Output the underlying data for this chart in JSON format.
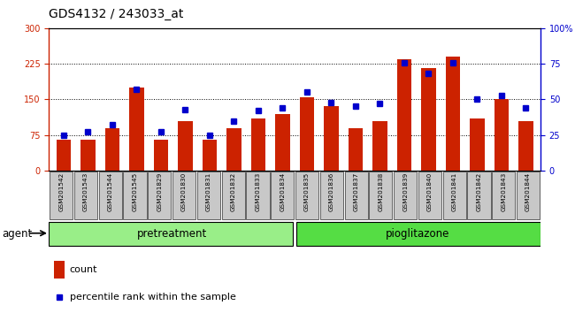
{
  "title": "GDS4132 / 243033_at",
  "samples": [
    "GSM201542",
    "GSM201543",
    "GSM201544",
    "GSM201545",
    "GSM201829",
    "GSM201830",
    "GSM201831",
    "GSM201832",
    "GSM201833",
    "GSM201834",
    "GSM201835",
    "GSM201836",
    "GSM201837",
    "GSM201838",
    "GSM201839",
    "GSM201840",
    "GSM201841",
    "GSM201842",
    "GSM201843",
    "GSM201844"
  ],
  "counts": [
    65,
    65,
    90,
    175,
    65,
    105,
    65,
    90,
    110,
    120,
    155,
    135,
    90,
    105,
    235,
    215,
    240,
    110,
    150,
    105
  ],
  "percentiles": [
    25,
    27,
    32,
    57,
    27,
    43,
    25,
    35,
    42,
    44,
    55,
    48,
    45,
    47,
    76,
    68,
    76,
    50,
    53,
    44
  ],
  "pretreatment_count": 10,
  "pioglitazone_count": 10,
  "left_ylim": [
    0,
    300
  ],
  "right_ylim": [
    0,
    100
  ],
  "left_yticks": [
    0,
    75,
    150,
    225,
    300
  ],
  "right_yticks": [
    0,
    25,
    50,
    75,
    100
  ],
  "bar_color": "#cc2200",
  "scatter_color": "#0000cc",
  "pretreatment_color": "#99ee88",
  "pioglitazone_color": "#55dd44",
  "agent_label": "agent",
  "pretreatment_label": "pretreatment",
  "pioglitazone_label": "pioglitazone",
  "legend_count": "count",
  "legend_percentile": "percentile rank within the sample",
  "background_color": "#c8c8c8",
  "title_fontsize": 10,
  "tick_fontsize": 7,
  "label_fontsize": 8.5,
  "legend_fontsize": 8
}
